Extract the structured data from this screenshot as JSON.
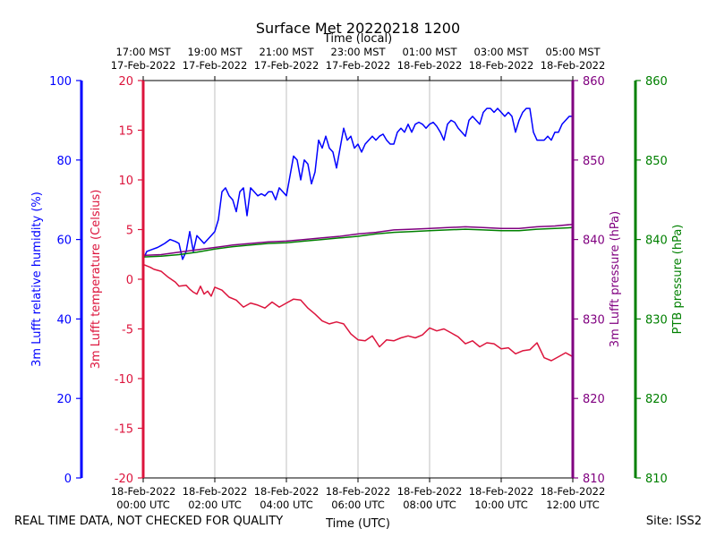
{
  "chart_data": {
    "type": "line",
    "title": "Surface Met 20220218 1200",
    "top_axis_label": "Time (local)",
    "xlabel": "Time (UTC)",
    "x_range_hours": [
      0,
      12
    ],
    "x_ticks_bottom": [
      {
        "hour": 0,
        "line1": "18-Feb-2022",
        "line2": "00:00 UTC"
      },
      {
        "hour": 2,
        "line1": "18-Feb-2022",
        "line2": "02:00 UTC"
      },
      {
        "hour": 4,
        "line1": "18-Feb-2022",
        "line2": "04:00 UTC"
      },
      {
        "hour": 6,
        "line1": "18-Feb-2022",
        "line2": "06:00 UTC"
      },
      {
        "hour": 8,
        "line1": "18-Feb-2022",
        "line2": "08:00 UTC"
      },
      {
        "hour": 10,
        "line1": "18-Feb-2022",
        "line2": "10:00 UTC"
      },
      {
        "hour": 12,
        "line1": "18-Feb-2022",
        "line2": "12:00 UTC"
      }
    ],
    "x_ticks_top": [
      {
        "hour": 0,
        "line1": "17:00 MST",
        "line2": "17-Feb-2022"
      },
      {
        "hour": 2,
        "line1": "19:00 MST",
        "line2": "17-Feb-2022"
      },
      {
        "hour": 4,
        "line1": "21:00 MST",
        "line2": "17-Feb-2022"
      },
      {
        "hour": 6,
        "line1": "23:00 MST",
        "line2": "17-Feb-2022"
      },
      {
        "hour": 8,
        "line1": "01:00 MST",
        "line2": "18-Feb-2022"
      },
      {
        "hour": 10,
        "line1": "03:00 MST",
        "line2": "18-Feb-2022"
      },
      {
        "hour": 12,
        "line1": "05:00 MST",
        "line2": "18-Feb-2022"
      }
    ],
    "axes": {
      "rh": {
        "label": "3m Lufft relative humidity (%)",
        "color": "#0000ff",
        "ylim": [
          0,
          100
        ],
        "ticks": [
          0,
          20,
          40,
          60,
          80,
          100
        ]
      },
      "temp": {
        "label": "3m Lufft temperature (Celsius)",
        "color": "#dc143c",
        "ylim": [
          -20,
          20
        ],
        "ticks": [
          -20,
          -15,
          -10,
          -5,
          0,
          5,
          10,
          15,
          20
        ]
      },
      "pres": {
        "label": "3m Lufft pressure (hPa)",
        "color": "#800080",
        "ylim": [
          810,
          860
        ],
        "ticks": [
          810,
          820,
          830,
          840,
          850,
          860
        ]
      },
      "ptb": {
        "label": "PTB pressure (hPa)",
        "color": "#008000",
        "ylim": [
          810,
          860
        ],
        "ticks": [
          810,
          820,
          830,
          840,
          850,
          860
        ]
      }
    },
    "series": [
      {
        "name": "3m Lufft relative humidity",
        "axis": "rh",
        "color": "#0000ff",
        "x": [
          0,
          0.1,
          0.25,
          0.4,
          0.5,
          0.6,
          0.75,
          0.9,
          1.0,
          1.1,
          1.2,
          1.3,
          1.4,
          1.5,
          1.6,
          1.7,
          1.8,
          1.9,
          2.0,
          2.1,
          2.2,
          2.3,
          2.4,
          2.5,
          2.6,
          2.7,
          2.8,
          2.9,
          3.0,
          3.1,
          3.2,
          3.3,
          3.4,
          3.5,
          3.6,
          3.7,
          3.8,
          3.9,
          4.0,
          4.1,
          4.2,
          4.3,
          4.4,
          4.5,
          4.6,
          4.7,
          4.8,
          4.9,
          5.0,
          5.1,
          5.2,
          5.3,
          5.4,
          5.5,
          5.6,
          5.7,
          5.8,
          5.9,
          6.0,
          6.1,
          6.2,
          6.3,
          6.4,
          6.5,
          6.6,
          6.7,
          6.8,
          6.9,
          7.0,
          7.1,
          7.2,
          7.3,
          7.4,
          7.5,
          7.6,
          7.7,
          7.8,
          7.9,
          8.0,
          8.1,
          8.2,
          8.3,
          8.4,
          8.5,
          8.6,
          8.7,
          8.8,
          8.9,
          9.0,
          9.1,
          9.2,
          9.3,
          9.4,
          9.5,
          9.6,
          9.7,
          9.8,
          9.9,
          10.0,
          10.1,
          10.2,
          10.3,
          10.4,
          10.5,
          10.6,
          10.7,
          10.8,
          10.9,
          11.0,
          11.1,
          11.2,
          11.3,
          11.4,
          11.5,
          11.6,
          11.7,
          11.8,
          11.9,
          12.0
        ],
        "values": [
          55,
          57,
          57.5,
          58,
          58.5,
          59,
          60,
          59.5,
          59,
          55,
          57,
          62,
          57,
          61,
          60,
          59,
          60,
          61,
          62,
          65,
          72,
          73,
          71,
          70,
          67,
          72,
          73,
          66,
          73,
          72,
          71,
          71.5,
          71,
          72,
          72,
          70,
          73,
          72,
          71,
          76,
          81,
          80,
          75,
          80,
          79,
          74,
          77,
          85,
          83,
          86,
          83,
          82,
          78,
          83,
          88,
          85,
          86,
          83,
          84,
          82,
          84,
          85,
          86,
          85,
          86,
          86.5,
          85,
          84,
          84,
          87,
          88,
          87,
          89,
          87,
          89,
          89.5,
          89,
          88,
          89,
          89.5,
          88.5,
          87,
          85,
          89,
          90,
          89.5,
          88,
          87,
          86,
          90,
          91,
          90,
          89,
          92,
          93,
          93,
          92,
          93,
          92,
          91,
          92,
          91,
          87,
          90,
          92,
          93,
          93,
          87,
          85,
          85,
          85,
          86,
          85,
          87,
          87,
          89,
          90,
          91,
          91
        ]
      },
      {
        "name": "3m Lufft temperature",
        "axis": "temp",
        "color": "#dc143c",
        "x": [
          0,
          0.2,
          0.3,
          0.5,
          0.7,
          0.9,
          1.0,
          1.2,
          1.3,
          1.4,
          1.5,
          1.6,
          1.7,
          1.8,
          1.9,
          2.0,
          2.2,
          2.4,
          2.6,
          2.8,
          3.0,
          3.2,
          3.4,
          3.6,
          3.8,
          4.0,
          4.2,
          4.4,
          4.6,
          4.8,
          5.0,
          5.2,
          5.4,
          5.6,
          5.8,
          6.0,
          6.2,
          6.4,
          6.6,
          6.8,
          7.0,
          7.2,
          7.4,
          7.6,
          7.8,
          8.0,
          8.2,
          8.4,
          8.6,
          8.8,
          9.0,
          9.2,
          9.4,
          9.6,
          9.8,
          10.0,
          10.2,
          10.4,
          10.6,
          10.8,
          11.0,
          11.2,
          11.4,
          11.6,
          11.8,
          12.0
        ],
        "values": [
          1.5,
          1.2,
          1.0,
          0.8,
          0.2,
          -0.3,
          -0.7,
          -0.6,
          -1.0,
          -1.3,
          -1.5,
          -0.7,
          -1.5,
          -1.2,
          -1.7,
          -0.8,
          -1.1,
          -1.8,
          -2.1,
          -2.8,
          -2.4,
          -2.6,
          -2.9,
          -2.3,
          -2.8,
          -2.4,
          -2.0,
          -2.1,
          -2.9,
          -3.5,
          -4.2,
          -4.5,
          -4.3,
          -4.5,
          -5.5,
          -6.1,
          -6.2,
          -5.7,
          -6.8,
          -6.1,
          -6.2,
          -5.9,
          -5.7,
          -5.9,
          -5.6,
          -4.9,
          -5.2,
          -5.0,
          -5.4,
          -5.8,
          -6.5,
          -6.2,
          -6.8,
          -6.4,
          -6.5,
          -7.0,
          -6.9,
          -7.5,
          -7.2,
          -7.1,
          -6.4,
          -7.9,
          -8.2,
          -7.8,
          -7.4,
          -7.8
        ]
      },
      {
        "name": "PTB pressure",
        "axis": "ptb",
        "color": "#008000",
        "x": [
          0,
          0.5,
          1.0,
          1.5,
          2.0,
          2.5,
          3.0,
          3.5,
          4.0,
          4.5,
          5.0,
          5.5,
          6.0,
          6.5,
          7.0,
          7.5,
          8.0,
          8.5,
          9.0,
          9.5,
          10.0,
          10.5,
          11.0,
          11.5,
          12.0
        ],
        "values": [
          837.8,
          837.9,
          838.1,
          838.4,
          838.8,
          839.1,
          839.3,
          839.5,
          839.6,
          839.8,
          840.0,
          840.2,
          840.4,
          840.7,
          840.9,
          841.0,
          841.1,
          841.2,
          841.3,
          841.2,
          841.1,
          841.1,
          841.3,
          841.4,
          841.5
        ]
      },
      {
        "name": "3m Lufft pressure",
        "axis": "pres",
        "color": "#800080",
        "x": [
          0,
          0.5,
          1.0,
          1.5,
          2.0,
          2.5,
          3.0,
          3.5,
          4.0,
          4.5,
          5.0,
          5.5,
          6.0,
          6.5,
          7.0,
          7.5,
          8.0,
          8.5,
          9.0,
          9.5,
          10.0,
          10.5,
          11.0,
          11.5,
          12.0
        ],
        "values": [
          838.0,
          838.1,
          838.4,
          838.7,
          839.0,
          839.3,
          839.5,
          839.7,
          839.8,
          840.0,
          840.2,
          840.4,
          840.7,
          840.9,
          841.2,
          841.3,
          841.4,
          841.5,
          841.6,
          841.5,
          841.4,
          841.4,
          841.6,
          841.7,
          841.9
        ]
      }
    ]
  },
  "footer": {
    "quality_note": "REAL TIME DATA, NOT CHECKED FOR QUALITY",
    "site": "Site: ISS2"
  }
}
